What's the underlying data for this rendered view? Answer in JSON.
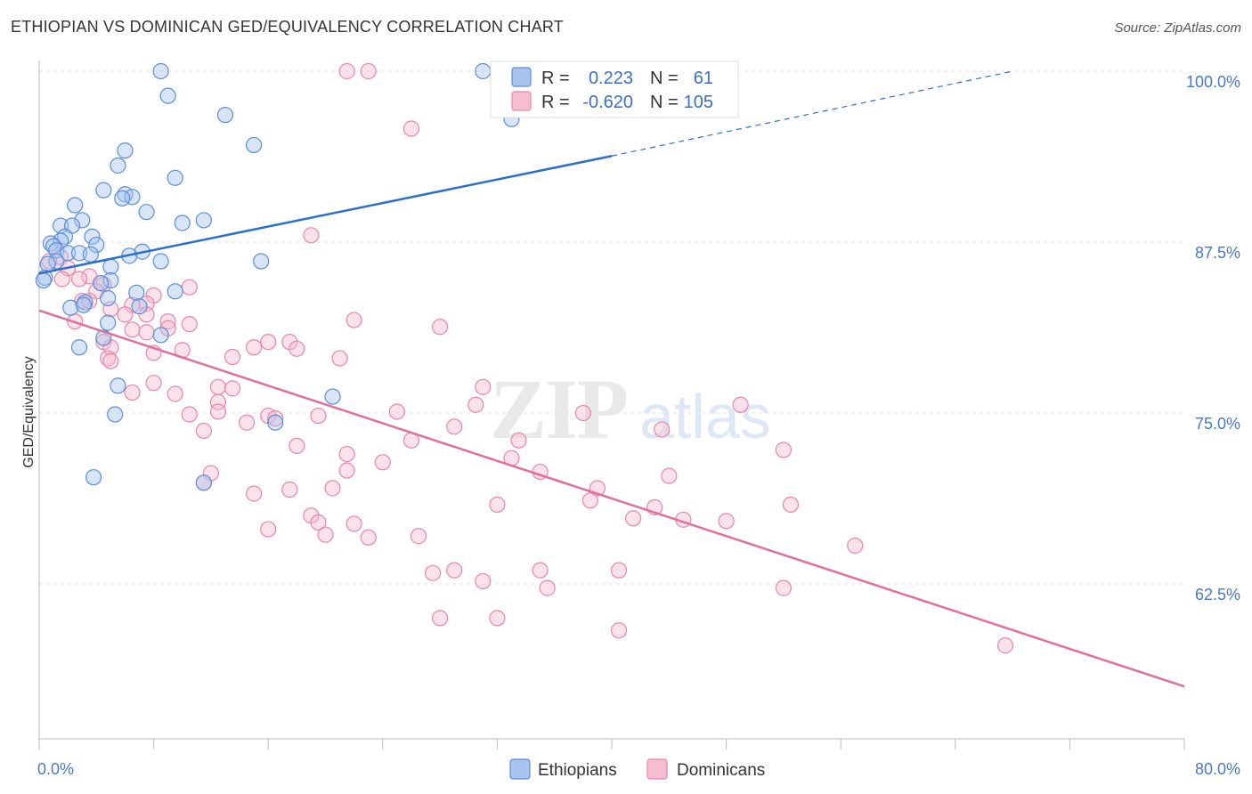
{
  "header": {
    "title": "ETHIOPIAN VS DOMINICAN GED/EQUIVALENCY CORRELATION CHART",
    "source": "Source: ZipAtlas.com"
  },
  "colors": {
    "ethiopians_fill": "#a9c4ee",
    "ethiopians_stroke": "#5b8ed8",
    "ethiopians_line": "#2b6fcc",
    "dominicans_fill": "#f6bdd0",
    "dominicans_stroke": "#e886a8",
    "dominicans_line": "#e0709a",
    "tick_label": "#4a78c8",
    "grid": "#e3e3e3"
  },
  "legend": {
    "rows": [
      {
        "r_label": "R =",
        "r_value": "0.223",
        "n_label": "N =",
        "n_value": "61"
      },
      {
        "r_label": "R =",
        "r_value": "-0.620",
        "n_label": "N =",
        "n_value": "105"
      }
    ]
  },
  "watermark": {
    "zip": "ZIP",
    "atlas": "atlas"
  },
  "chart_data": {
    "type": "scatter",
    "title": "ETHIOPIAN VS DOMINICAN GED/EQUIVALENCY CORRELATION CHART",
    "xlabel": "",
    "ylabel": "GED/Equivalency",
    "xlim": [
      0,
      80
    ],
    "ylim": [
      50,
      100
    ],
    "x_tick_labels": [
      "0.0%",
      "80.0%"
    ],
    "y_ticks": [
      62.5,
      75.0,
      87.5,
      100.0
    ],
    "y_tick_labels": [
      "62.5%",
      "75.0%",
      "87.5%",
      "100.0%"
    ],
    "grid": true,
    "legend_position": "top-center",
    "series": [
      {
        "name": "Ethiopians",
        "trend": {
          "x0": 0,
          "y0": 85.2,
          "x1": 40,
          "y1": 93.8,
          "dash_to_x": 68,
          "dash_to_y": 100.0
        },
        "points": [
          [
            8.5,
            100
          ],
          [
            31,
            100
          ],
          [
            9,
            98.2
          ],
          [
            13,
            96.8
          ],
          [
            33,
            96.5
          ],
          [
            15,
            94.6
          ],
          [
            6,
            94.2
          ],
          [
            5.5,
            93.1
          ],
          [
            9.5,
            92.2
          ],
          [
            4.5,
            91.3
          ],
          [
            6,
            91
          ],
          [
            6.5,
            90.8
          ],
          [
            5.8,
            90.7
          ],
          [
            2.5,
            90.2
          ],
          [
            7.5,
            89.7
          ],
          [
            3,
            89.1
          ],
          [
            10,
            88.9
          ],
          [
            11.5,
            89.1
          ],
          [
            1.5,
            88.7
          ],
          [
            2.3,
            88.7
          ],
          [
            1.8,
            87.9
          ],
          [
            3.7,
            87.9
          ],
          [
            1.5,
            87.6
          ],
          [
            0.8,
            87.4
          ],
          [
            1,
            87.2
          ],
          [
            4,
            87.3
          ],
          [
            1.2,
            86.9
          ],
          [
            2,
            86.7
          ],
          [
            2.8,
            86.7
          ],
          [
            3.6,
            86.6
          ],
          [
            6.3,
            86.5
          ],
          [
            7.2,
            86.8
          ],
          [
            8.5,
            86.1
          ],
          [
            15.5,
            86.1
          ],
          [
            1.2,
            86.1
          ],
          [
            0.6,
            85.9
          ],
          [
            5,
            85.7
          ],
          [
            0.4,
            84.9
          ],
          [
            0.3,
            84.7
          ],
          [
            5,
            84.7
          ],
          [
            4.3,
            84.5
          ],
          [
            9.5,
            83.9
          ],
          [
            6.8,
            83.8
          ],
          [
            4.8,
            83.4
          ],
          [
            3.2,
            83.1
          ],
          [
            2.2,
            82.7
          ],
          [
            3.1,
            82.9
          ],
          [
            7,
            82.8
          ],
          [
            4.8,
            81.6
          ],
          [
            8.5,
            80.7
          ],
          [
            4.5,
            80.5
          ],
          [
            2.8,
            79.8
          ],
          [
            5.5,
            77
          ],
          [
            20.5,
            76.2
          ],
          [
            5.3,
            74.9
          ],
          [
            16.5,
            74.3
          ],
          [
            3.8,
            70.3
          ],
          [
            11.5,
            69.9
          ]
        ]
      },
      {
        "name": "Dominicans",
        "trend": {
          "x0": 0,
          "y0": 82.5,
          "x1": 80,
          "y1": 55.0
        },
        "points": [
          [
            21.5,
            100
          ],
          [
            23,
            100
          ],
          [
            26,
            95.8
          ],
          [
            19,
            88
          ],
          [
            1.5,
            86.4
          ],
          [
            0.7,
            86.1
          ],
          [
            2,
            85.6
          ],
          [
            3.5,
            85
          ],
          [
            1.6,
            84.8
          ],
          [
            2.8,
            84.8
          ],
          [
            4.5,
            84.4
          ],
          [
            10.5,
            84.2
          ],
          [
            4,
            83.9
          ],
          [
            8,
            83.6
          ],
          [
            3,
            83.2
          ],
          [
            3.5,
            83.2
          ],
          [
            7.5,
            83
          ],
          [
            6.5,
            82.9
          ],
          [
            5,
            82.6
          ],
          [
            7.5,
            82.2
          ],
          [
            6,
            82.2
          ],
          [
            9,
            81.7
          ],
          [
            22,
            81.8
          ],
          [
            2.5,
            81.7
          ],
          [
            10.5,
            81.5
          ],
          [
            28,
            81.3
          ],
          [
            9,
            81.2
          ],
          [
            6.5,
            81.1
          ],
          [
            7.5,
            80.9
          ],
          [
            4.5,
            80.2
          ],
          [
            5,
            79.8
          ],
          [
            16,
            80.2
          ],
          [
            17.5,
            80.2
          ],
          [
            15,
            79.8
          ],
          [
            18,
            79.7
          ],
          [
            8,
            79.4
          ],
          [
            10,
            79.6
          ],
          [
            4.8,
            79
          ],
          [
            13.5,
            79.1
          ],
          [
            21,
            79
          ],
          [
            5,
            78.8
          ],
          [
            31,
            76.9
          ],
          [
            8,
            77.2
          ],
          [
            12.5,
            76.9
          ],
          [
            13.5,
            76.8
          ],
          [
            6.5,
            76.5
          ],
          [
            9.5,
            76.4
          ],
          [
            12.5,
            75.8
          ],
          [
            30.5,
            75.6
          ],
          [
            25,
            75.1
          ],
          [
            12.5,
            75.1
          ],
          [
            19.5,
            74.8
          ],
          [
            16,
            74.8
          ],
          [
            38,
            75
          ],
          [
            49,
            75.6
          ],
          [
            10.5,
            74.9
          ],
          [
            14.5,
            74.3
          ],
          [
            16.5,
            74.6
          ],
          [
            29,
            74
          ],
          [
            43.5,
            73.8
          ],
          [
            11.5,
            73.7
          ],
          [
            26,
            73
          ],
          [
            33.5,
            73
          ],
          [
            18,
            72.6
          ],
          [
            52,
            72.3
          ],
          [
            21.5,
            72
          ],
          [
            33,
            71.7
          ],
          [
            24,
            71.4
          ],
          [
            35,
            70.7
          ],
          [
            21.5,
            70.8
          ],
          [
            12,
            70.6
          ],
          [
            44,
            70.4
          ],
          [
            11.5,
            69.9
          ],
          [
            20.5,
            69.5
          ],
          [
            17.5,
            69.4
          ],
          [
            15,
            69.1
          ],
          [
            39,
            69.5
          ],
          [
            38.5,
            68.6
          ],
          [
            32,
            68.3
          ],
          [
            43,
            68.1
          ],
          [
            52.5,
            68.3
          ],
          [
            19,
            67.5
          ],
          [
            41.5,
            67.3
          ],
          [
            45,
            67.2
          ],
          [
            48,
            67.1
          ],
          [
            19.5,
            67
          ],
          [
            22,
            66.9
          ],
          [
            16,
            66.5
          ],
          [
            20,
            66.1
          ],
          [
            23,
            65.9
          ],
          [
            26.5,
            66
          ],
          [
            57,
            65.3
          ],
          [
            29,
            63.5
          ],
          [
            27.5,
            63.3
          ],
          [
            35,
            63.5
          ],
          [
            40.5,
            63.5
          ],
          [
            31,
            62.7
          ],
          [
            35.5,
            62.2
          ],
          [
            52,
            62.2
          ],
          [
            28,
            60
          ],
          [
            32,
            60
          ],
          [
            40.5,
            59.1
          ],
          [
            67.5,
            58
          ]
        ]
      }
    ]
  },
  "bottom_legend": {
    "items": [
      {
        "label": "Ethiopians"
      },
      {
        "label": "Dominicans"
      }
    ]
  }
}
